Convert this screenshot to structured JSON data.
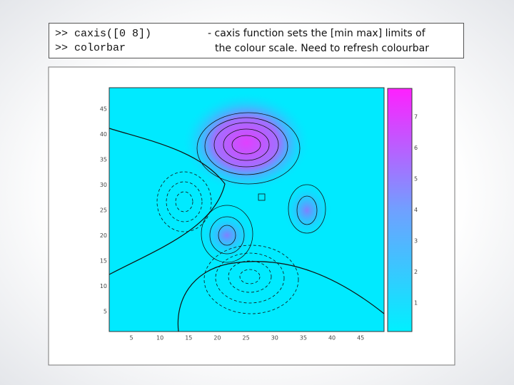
{
  "code": [
    ">> caxis([0 8])",
    ">> colorbar"
  ],
  "description": [
    "- caxis function sets the [min max] limits of",
    "the colour scale. Need to refresh colourbar"
  ],
  "plot": {
    "xticks": [
      5,
      10,
      15,
      20,
      25,
      30,
      35,
      40,
      45
    ],
    "yticks": [
      45,
      40,
      35,
      30,
      25,
      20,
      15,
      10,
      5
    ],
    "colorbar_ticks": [
      7,
      6,
      5,
      4,
      3,
      2,
      1
    ]
  }
}
